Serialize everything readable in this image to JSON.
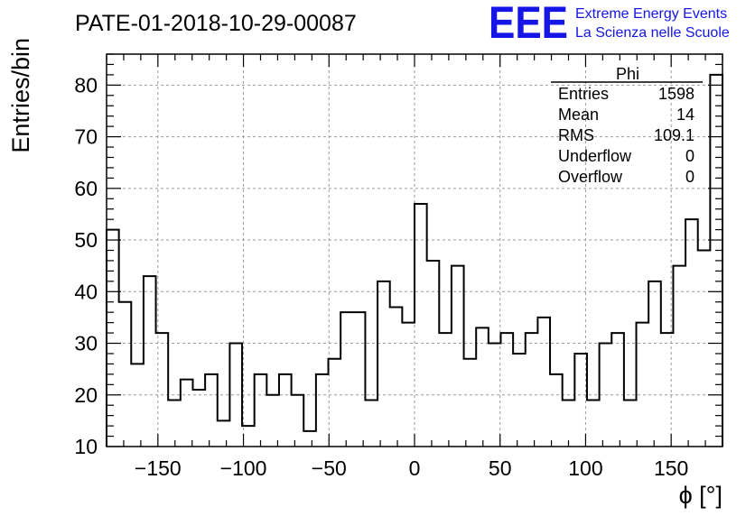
{
  "chart_data": {
    "type": "histogram",
    "title": "PATE-01-2018-10-29-00087",
    "xlabel": "ϕ [°]",
    "ylabel": "Entries/bin",
    "xlim": [
      -180,
      180
    ],
    "ylim": [
      10,
      86
    ],
    "bin_width": 7.2,
    "x_ticks": [
      -150,
      -100,
      -50,
      0,
      50,
      100,
      150
    ],
    "x_tick_labels": [
      "−150",
      "−100",
      "−50",
      "0",
      "50",
      "100",
      "150"
    ],
    "y_ticks": [
      10,
      20,
      30,
      40,
      50,
      60,
      70,
      80
    ],
    "y_tick_labels": [
      "10",
      "20",
      "30",
      "40",
      "50",
      "60",
      "70",
      "80"
    ],
    "grid": true,
    "counts": [
      52,
      38,
      26,
      43,
      32,
      19,
      23,
      21,
      24,
      15,
      30,
      14,
      24,
      20,
      24,
      20,
      13,
      24,
      27,
      36,
      36,
      19,
      42,
      37,
      34,
      57,
      46,
      32,
      45,
      27,
      33,
      30,
      32,
      28,
      32,
      35,
      24,
      19,
      28,
      19,
      30,
      32,
      19,
      34,
      42,
      32,
      45,
      54,
      48,
      82
    ]
  },
  "stats_box": {
    "title": "Phi",
    "rows": [
      {
        "label": "Entries",
        "value": "1598"
      },
      {
        "label": "Mean",
        "value": "14"
      },
      {
        "label": "RMS",
        "value": "109.1"
      },
      {
        "label": "Underflow",
        "value": "0"
      },
      {
        "label": "Overflow",
        "value": "0"
      }
    ]
  },
  "logo": {
    "mark": "EEE",
    "line1": "Extreme Energy Events",
    "line2": "La Scienza nelle Scuole",
    "color": "#1515e6"
  },
  "colors": {
    "line": "#000000",
    "grid": "#9a9a9a"
  }
}
